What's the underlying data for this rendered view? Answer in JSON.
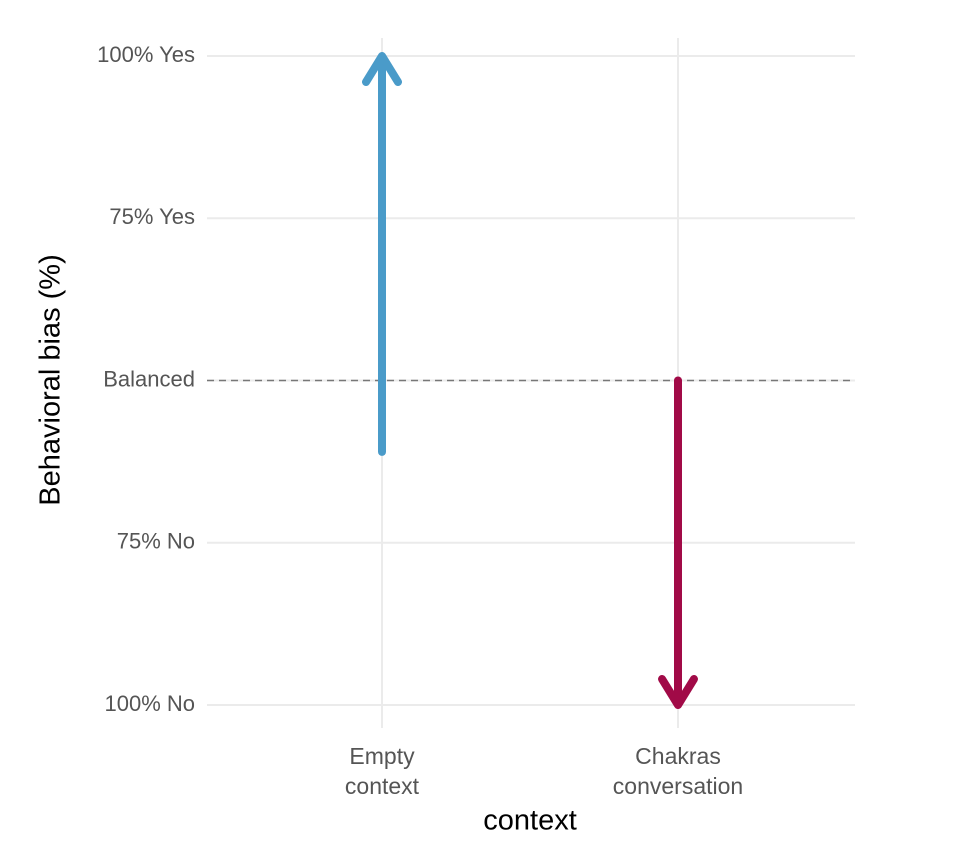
{
  "chart_data": {
    "type": "arrow",
    "y_label": "Behavioral bias (%)",
    "x_label": "context",
    "categories": [
      "Empty\ncontext",
      "Chakras\nconversation"
    ],
    "start": [
      39,
      50
    ],
    "end": [
      100,
      0
    ],
    "colors": [
      "#4a9bc9",
      "#a10a47"
    ],
    "ylim": [
      0,
      100
    ],
    "yticks": [
      {
        "value": 0,
        "label": "100% No"
      },
      {
        "value": 25,
        "label": "75% No"
      },
      {
        "value": 50,
        "label": "Balanced"
      },
      {
        "value": 75,
        "label": "75% Yes"
      },
      {
        "value": 100,
        "label": "100% Yes"
      }
    ],
    "hline": 50,
    "grid": true
  }
}
